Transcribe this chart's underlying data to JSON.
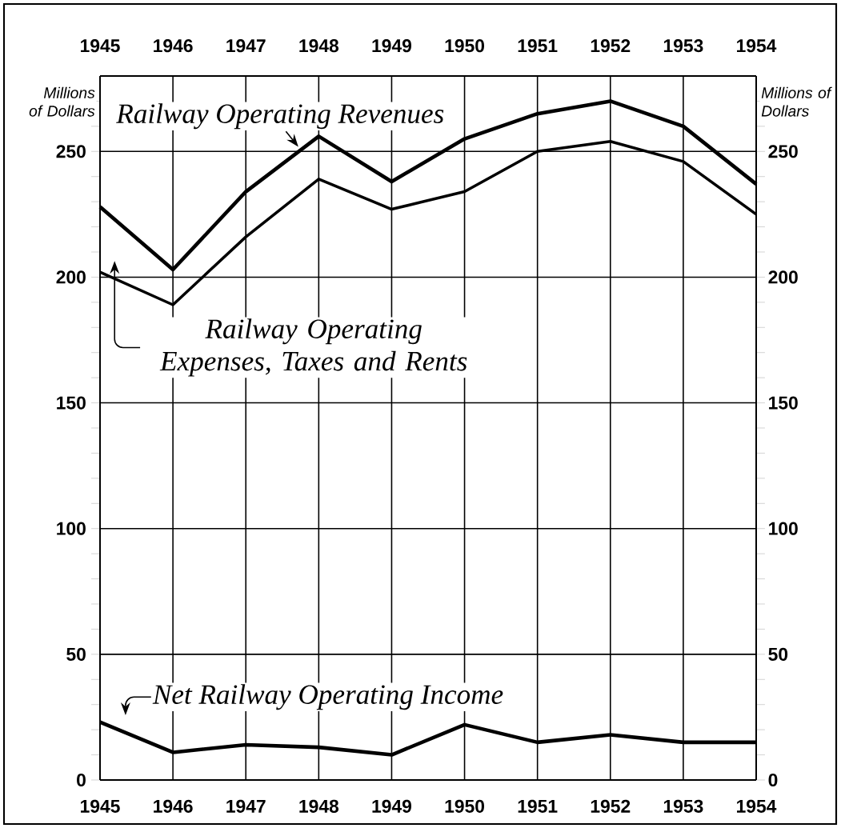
{
  "chart_data": {
    "type": "line",
    "ylabel": "Millions of Dollars",
    "y2label": "Millions of Dollars",
    "x": [
      1945,
      1946,
      1947,
      1948,
      1949,
      1950,
      1951,
      1952,
      1953,
      1954
    ],
    "xlim": [
      1945,
      1954
    ],
    "xticks": [
      1945,
      1946,
      1947,
      1948,
      1949,
      1950,
      1951,
      1952,
      1953,
      1954
    ],
    "x2lim": [
      1945,
      1954
    ],
    "x2ticks": [
      1945,
      1946,
      1947,
      1948,
      1949,
      1950,
      1951,
      1952,
      1953,
      1954
    ],
    "ylim": [
      0,
      280
    ],
    "yticks": [
      0,
      {
        "value": 10,
        "label": null
      },
      {
        "value": 20,
        "label": null
      },
      {
        "value": 30,
        "label": null
      },
      {
        "value": 40,
        "label": null
      },
      50,
      {
        "value": 60,
        "label": null
      },
      {
        "value": 70,
        "label": null
      },
      {
        "value": 80,
        "label": null
      },
      {
        "value": 90,
        "label": null
      },
      100,
      {
        "value": 110,
        "label": null
      },
      {
        "value": 120,
        "label": null
      },
      {
        "value": 130,
        "label": null
      },
      {
        "value": 140,
        "label": null
      },
      150,
      {
        "value": 160,
        "label": null
      },
      {
        "value": 170,
        "label": null
      },
      {
        "value": 180,
        "label": null
      },
      {
        "value": 190,
        "label": null
      },
      200,
      {
        "value": 210,
        "label": null
      },
      {
        "value": 220,
        "label": null
      },
      {
        "value": 230,
        "label": null
      },
      {
        "value": 240,
        "label": null
      },
      250,
      {
        "value": 260,
        "label": null
      },
      {
        "value": 270,
        "label": null
      }
    ],
    "y2lim": [
      0,
      280
    ],
    "y2ticks": [
      0,
      {
        "value": 10,
        "label": null
      },
      {
        "value": 20,
        "label": null
      },
      {
        "value": 30,
        "label": null
      },
      {
        "value": 40,
        "label": null
      },
      50,
      {
        "value": 60,
        "label": null
      },
      {
        "value": 70,
        "label": null
      },
      {
        "value": 80,
        "label": null
      },
      {
        "value": 90,
        "label": null
      },
      100,
      {
        "value": 110,
        "label": null
      },
      {
        "value": 120,
        "label": null
      },
      {
        "value": 130,
        "label": null
      },
      {
        "value": 140,
        "label": null
      },
      150,
      {
        "value": 160,
        "label": null
      },
      {
        "value": 170,
        "label": null
      },
      {
        "value": 180,
        "label": null
      },
      {
        "value": 190,
        "label": null
      },
      200,
      {
        "value": 210,
        "label": null
      },
      {
        "value": 220,
        "label": null
      },
      {
        "value": 230,
        "label": null
      },
      {
        "value": 240,
        "label": null
      },
      250,
      {
        "value": 260,
        "label": null
      },
      {
        "value": 270,
        "label": null
      }
    ],
    "grid": true,
    "marker": "none",
    "line_style": "solid",
    "series": [
      {
        "name": "Railway Operating Revenues",
        "color": "#000000",
        "values": [
          228,
          203,
          234,
          256,
          238,
          255,
          265,
          270,
          260,
          237
        ]
      },
      {
        "name": "Railway Operating Expenses, Taxes and Rents",
        "color": "#000000",
        "values": [
          202,
          189,
          216,
          239,
          227,
          234,
          250,
          254,
          246,
          225
        ]
      },
      {
        "name": "Net Railway Operating Income",
        "color": "#000000",
        "values": [
          23,
          11,
          14,
          13,
          10,
          22,
          15,
          18,
          15,
          15
        ]
      }
    ]
  }
}
